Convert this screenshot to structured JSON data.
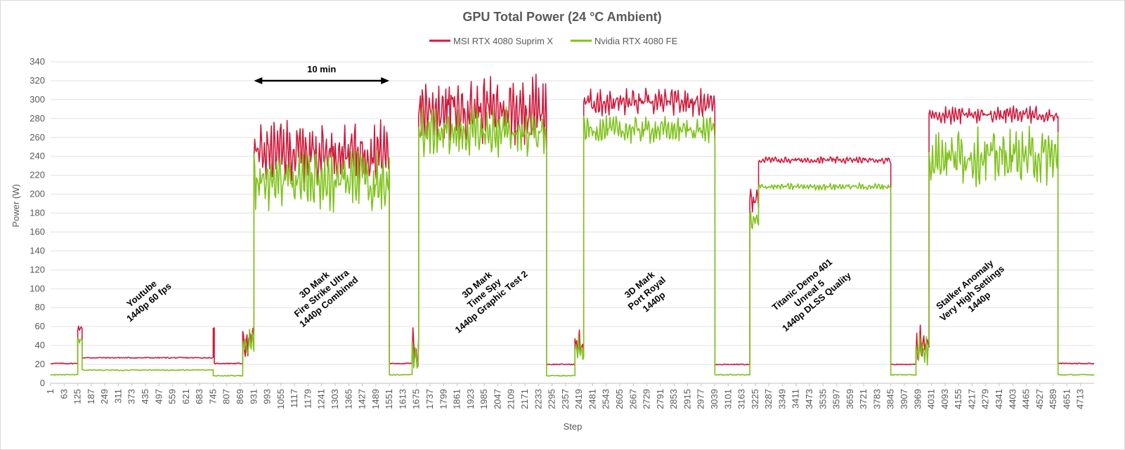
{
  "chart_data": {
    "type": "line",
    "title": "GPU Total Power (24 °C Ambient)",
    "xlabel": "Step",
    "ylabel": "Power (W)",
    "ylim": [
      0,
      340
    ],
    "yticks": [
      0,
      20,
      40,
      60,
      80,
      100,
      120,
      140,
      160,
      180,
      200,
      220,
      240,
      260,
      280,
      300,
      320,
      340
    ],
    "xlim": [
      1,
      4775
    ],
    "xticks": [
      1,
      63,
      125,
      187,
      249,
      311,
      373,
      435,
      497,
      559,
      621,
      683,
      745,
      807,
      869,
      931,
      993,
      1055,
      1117,
      1179,
      1241,
      1303,
      1365,
      1427,
      1489,
      1551,
      1613,
      1675,
      1737,
      1799,
      1861,
      1923,
      1985,
      2047,
      2109,
      2171,
      2233,
      2295,
      2357,
      2419,
      2481,
      2543,
      2605,
      2667,
      2729,
      2791,
      2853,
      2915,
      2977,
      3039,
      3101,
      3163,
      3225,
      3287,
      3349,
      3411,
      3473,
      3535,
      3597,
      3659,
      3721,
      3783,
      3845,
      3907,
      3969,
      4031,
      4093,
      4155,
      4217,
      4279,
      4341,
      4403,
      4465,
      4527,
      4589,
      4651,
      4713
    ],
    "grid": true,
    "legend_position": "top-center",
    "series": [
      {
        "name": "MSI RTX 4080 Suprim X",
        "color": "#d01a3c",
        "segments": [
          {
            "label": "idle",
            "x": [
              1,
              125
            ],
            "base": 21,
            "amp": 1
          },
          {
            "label": "spike",
            "x": [
              125,
              145
            ],
            "base": 58,
            "amp": 3
          },
          {
            "label": "youtube",
            "x": [
              145,
              745
            ],
            "base": 27,
            "amp": 1
          },
          {
            "label": "spike",
            "x": [
              745,
              750
            ],
            "base": 57,
            "amp": 2
          },
          {
            "label": "idle",
            "x": [
              750,
              880
            ],
            "base": 21,
            "amp": 1
          },
          {
            "label": "loading",
            "x": [
              880,
              931
            ],
            "base": 45,
            "amp": 15
          },
          {
            "label": "Fire Strike Ultra",
            "x": [
              931,
              1551
            ],
            "base": 245,
            "amp": 27
          },
          {
            "label": "idle",
            "x": [
              1551,
              1655
            ],
            "base": 21,
            "amp": 1
          },
          {
            "label": "loading",
            "x": [
              1655,
              1685
            ],
            "base": 35,
            "amp": 20
          },
          {
            "label": "Time Spy GT2",
            "x": [
              1685,
              2270
            ],
            "base": 290,
            "amp": 30
          },
          {
            "label": "idle",
            "x": [
              2270,
              2400
            ],
            "base": 20,
            "amp": 1
          },
          {
            "label": "loading",
            "x": [
              2400,
              2440
            ],
            "base": 40,
            "amp": 15
          },
          {
            "label": "Port Royal",
            "x": [
              2440,
              3040
            ],
            "base": 297,
            "amp": 12
          },
          {
            "label": "idle",
            "x": [
              3040,
              3200
            ],
            "base": 20,
            "amp": 1
          },
          {
            "label": "loading",
            "x": [
              3200,
              3240
            ],
            "base": 190,
            "amp": 15
          },
          {
            "label": "Titanic Demo",
            "x": [
              3240,
              3845
            ],
            "base": 236,
            "amp": 3
          },
          {
            "label": "idle",
            "x": [
              3845,
              3960
            ],
            "base": 20,
            "amp": 1
          },
          {
            "label": "loading",
            "x": [
              3960,
              4020
            ],
            "base": 40,
            "amp": 20
          },
          {
            "label": "Stalker Anomaly",
            "x": [
              4020,
              4610
            ],
            "base": 284,
            "amp": 8
          },
          {
            "label": "idle",
            "x": [
              4610,
              4775
            ],
            "base": 21,
            "amp": 1
          }
        ]
      },
      {
        "name": "Nvidia RTX 4080 FE",
        "color": "#7ec21a",
        "segments": [
          {
            "label": "idle",
            "x": [
              1,
              125
            ],
            "base": 9,
            "amp": 1
          },
          {
            "label": "spike",
            "x": [
              125,
              145
            ],
            "base": 45,
            "amp": 3
          },
          {
            "label": "youtube",
            "x": [
              145,
              745
            ],
            "base": 14,
            "amp": 1
          },
          {
            "label": "idle",
            "x": [
              745,
              880
            ],
            "base": 8,
            "amp": 1
          },
          {
            "label": "loading",
            "x": [
              880,
              931
            ],
            "base": 40,
            "amp": 15
          },
          {
            "label": "Fire Strike Ultra",
            "x": [
              931,
              1551
            ],
            "base": 215,
            "amp": 27
          },
          {
            "label": "idle",
            "x": [
              1551,
              1655
            ],
            "base": 9,
            "amp": 1
          },
          {
            "label": "loading",
            "x": [
              1655,
              1685
            ],
            "base": 30,
            "amp": 15
          },
          {
            "label": "Time Spy GT2",
            "x": [
              1685,
              2270
            ],
            "base": 265,
            "amp": 22
          },
          {
            "label": "idle",
            "x": [
              2270,
              2400
            ],
            "base": 8,
            "amp": 1
          },
          {
            "label": "loading",
            "x": [
              2400,
              2440
            ],
            "base": 35,
            "amp": 12
          },
          {
            "label": "Port Royal",
            "x": [
              2440,
              3040
            ],
            "base": 268,
            "amp": 12
          },
          {
            "label": "idle",
            "x": [
              3040,
              3200
            ],
            "base": 9,
            "amp": 1
          },
          {
            "label": "loading",
            "x": [
              3200,
              3240
            ],
            "base": 170,
            "amp": 15
          },
          {
            "label": "Titanic Demo",
            "x": [
              3240,
              3845
            ],
            "base": 208,
            "amp": 3
          },
          {
            "label": "idle",
            "x": [
              3845,
              3960
            ],
            "base": 9,
            "amp": 1
          },
          {
            "label": "loading",
            "x": [
              3960,
              4020
            ],
            "base": 35,
            "amp": 15
          },
          {
            "label": "Stalker Anomaly",
            "x": [
              4020,
              4610
            ],
            "base": 240,
            "amp": 25
          },
          {
            "label": "idle",
            "x": [
              4610,
              4775
            ],
            "base": 9,
            "amp": 1
          }
        ]
      }
    ],
    "annotations": [
      {
        "id": "youtube",
        "lines": [
          "Youtube",
          "1440p 60 fps"
        ],
        "x": 435,
        "y": 90
      },
      {
        "id": "firestrike",
        "lines": [
          "3D Mark",
          "Fire Strike Ultra",
          "1440p Combined"
        ],
        "x": 1241,
        "y": 95
      },
      {
        "id": "timespy",
        "lines": [
          "3D Mark",
          "Time Spy",
          "1440p Graphic Test 2"
        ],
        "x": 1985,
        "y": 95
      },
      {
        "id": "portroyal",
        "lines": [
          "3D Mark",
          "Port Royal",
          "1440p"
        ],
        "x": 2729,
        "y": 95
      },
      {
        "id": "titanic",
        "lines": [
          "Titanic Demo 401",
          "Unreal 5",
          "1440p DLSS Quality"
        ],
        "x": 3473,
        "y": 95
      },
      {
        "id": "stalker",
        "lines": [
          "Stalker Anomaly",
          "Very High Settings",
          "1440p"
        ],
        "x": 4217,
        "y": 95
      }
    ],
    "duration_marker": {
      "label": "10 min",
      "x_start": 931,
      "x_end": 1551,
      "y": 320
    }
  }
}
